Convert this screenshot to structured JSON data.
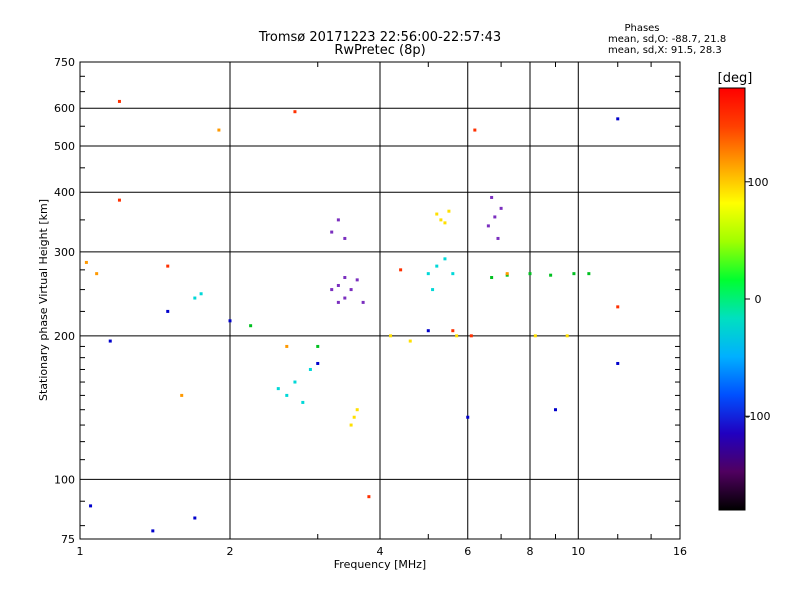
{
  "chart_data": {
    "type": "scatter",
    "title": "Tromsø 20171223 22:56:00-22:57:43",
    "subtitle": "RwPretec (8p)",
    "xlabel": "Frequency [MHz]",
    "ylabel": "Stationary phase Virtual Height [km]",
    "x_scale": "log",
    "y_scale": "log",
    "xlim": [
      1,
      16
    ],
    "ylim": [
      75,
      750
    ],
    "x_ticks": [
      "1",
      "2",
      "4",
      "6",
      "8",
      "10",
      "16"
    ],
    "y_ticks": [
      "75",
      "100",
      "200",
      "300",
      "400",
      "500",
      "600",
      "750"
    ],
    "grid": true,
    "stats_lines": [
      "Phases",
      "mean, sd,O: -88.7, 21.8",
      "mean, sd,X:  91.5, 28.3"
    ],
    "colorbar": {
      "label": "[deg]",
      "range": [
        -180,
        180
      ],
      "ticks": [
        "100",
        "0",
        "-100"
      ],
      "colors": [
        "#000000",
        "#500060",
        "#2000c0",
        "#0050ff",
        "#00b0ff",
        "#00e0c0",
        "#00ff30",
        "#a0ff00",
        "#ffff00",
        "#ffa000",
        "#ff4000",
        "#ff0000"
      ]
    },
    "series": [
      {
        "color": "#0000cc",
        "points": [
          [
            1.05,
            88
          ],
          [
            1.15,
            195
          ],
          [
            1.4,
            78
          ],
          [
            1.5,
            225
          ],
          [
            1.7,
            83
          ],
          [
            2.0,
            215
          ],
          [
            3.0,
            175
          ],
          [
            5.0,
            205
          ],
          [
            6.0,
            135
          ],
          [
            9.0,
            140
          ],
          [
            12.0,
            570
          ],
          [
            12.0,
            175
          ]
        ]
      },
      {
        "color": "#7b2fbf",
        "points": [
          [
            3.2,
            250
          ],
          [
            3.3,
            255
          ],
          [
            3.4,
            265
          ],
          [
            3.5,
            250
          ],
          [
            3.6,
            262
          ],
          [
            3.3,
            235
          ],
          [
            3.7,
            235
          ],
          [
            3.4,
            240
          ],
          [
            6.6,
            340
          ],
          [
            6.8,
            355
          ],
          [
            6.9,
            320
          ],
          [
            7.0,
            370
          ],
          [
            6.7,
            390
          ],
          [
            3.2,
            330
          ],
          [
            3.3,
            350
          ],
          [
            3.4,
            320
          ]
        ]
      },
      {
        "color": "#00d8d8",
        "points": [
          [
            5.0,
            270
          ],
          [
            5.2,
            280
          ],
          [
            5.4,
            290
          ],
          [
            5.1,
            250
          ],
          [
            5.6,
            270
          ],
          [
            2.6,
            150
          ],
          [
            2.7,
            160
          ],
          [
            2.5,
            155
          ],
          [
            2.9,
            170
          ],
          [
            2.8,
            145
          ],
          [
            1.7,
            240
          ],
          [
            1.75,
            245
          ]
        ]
      },
      {
        "color": "#ffe000",
        "points": [
          [
            3.5,
            130
          ],
          [
            3.55,
            135
          ],
          [
            3.6,
            140
          ],
          [
            5.2,
            360
          ],
          [
            5.3,
            350
          ],
          [
            5.4,
            345
          ],
          [
            5.5,
            365
          ],
          [
            4.6,
            195
          ],
          [
            4.2,
            200
          ],
          [
            5.7,
            200
          ],
          [
            8.2,
            200
          ],
          [
            9.5,
            200
          ]
        ]
      },
      {
        "color": "#00c020",
        "points": [
          [
            6.7,
            265
          ],
          [
            7.2,
            268
          ],
          [
            8.0,
            270
          ],
          [
            8.8,
            268
          ],
          [
            9.8,
            270
          ],
          [
            10.5,
            270
          ],
          [
            2.2,
            210
          ],
          [
            3.0,
            190
          ]
        ]
      },
      {
        "color": "#ff3000",
        "points": [
          [
            1.2,
            620
          ],
          [
            1.2,
            385
          ],
          [
            1.5,
            280
          ],
          [
            2.7,
            590
          ],
          [
            4.4,
            275
          ],
          [
            5.6,
            205
          ],
          [
            6.1,
            200
          ],
          [
            6.2,
            540
          ],
          [
            12.0,
            230
          ],
          [
            3.8,
            92
          ]
        ]
      },
      {
        "color": "#ff9900",
        "points": [
          [
            1.03,
            285
          ],
          [
            1.08,
            270
          ],
          [
            1.6,
            150
          ],
          [
            1.9,
            540
          ],
          [
            2.6,
            190
          ],
          [
            7.2,
            270
          ]
        ]
      }
    ]
  }
}
